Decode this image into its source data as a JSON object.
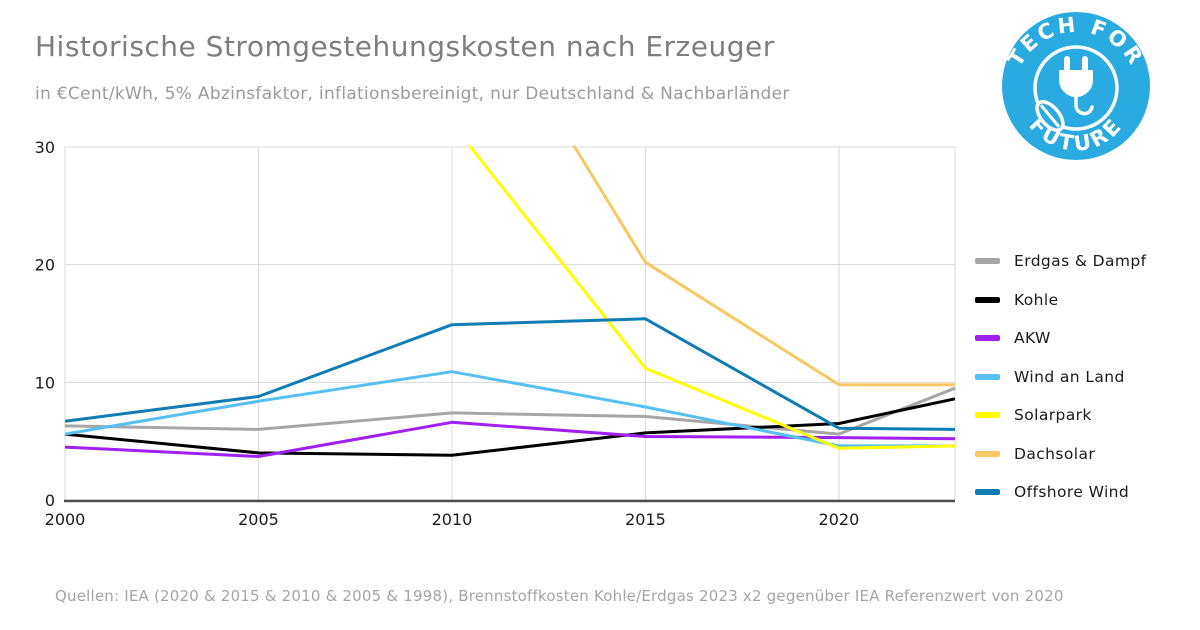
{
  "header": {
    "title": "Historische Stromgestehungskosten nach Erzeuger",
    "subtitle": "in €Cent/kWh, 5% Abzinsfaktor, inflationsbereinigt, nur Deutschland & Nachbarländer"
  },
  "logo": {
    "text_top": "TECH FOR",
    "text_bottom": "FUTURE",
    "color": "#29abe2",
    "icon": "plug-leaf-icon"
  },
  "footer": {
    "source": "Quellen: IEA (2020 & 2015 & 2010 & 2005 & 1998), Brennstoffkosten Kohle/Erdgas 2023 x2 gegenüber IEA Referenzwert von 2020"
  },
  "chart_data": {
    "type": "line",
    "x": [
      2000,
      2005,
      2010,
      2015,
      2020,
      2023
    ],
    "x_tick_labels": [
      "2000",
      "2005",
      "2010",
      "2015",
      "2020"
    ],
    "y_ticks": [
      0,
      10,
      20,
      30
    ],
    "xlim": [
      2000,
      2023
    ],
    "ylim": [
      0,
      30
    ],
    "grid": true,
    "legend_position": "right",
    "series": [
      {
        "name": "Erdgas & Dampf",
        "color": "#a6a6a6",
        "values": [
          6.3,
          6.0,
          7.4,
          7.1,
          5.6,
          9.5
        ]
      },
      {
        "name": "Kohle",
        "color": "#000000",
        "values": [
          5.6,
          4.0,
          3.8,
          5.7,
          6.5,
          8.6
        ]
      },
      {
        "name": "AKW",
        "color": "#a020f0",
        "values": [
          4.5,
          3.7,
          6.6,
          5.4,
          5.3,
          5.2
        ]
      },
      {
        "name": "Wind an Land",
        "color": "#56c1f0",
        "values": [
          5.6,
          8.4,
          10.9,
          7.9,
          4.6,
          4.6
        ]
      },
      {
        "name": "Solarpark",
        "color": "#ffff00",
        "values": [
          null,
          null,
          32,
          11.2,
          4.4,
          4.6
        ]
      },
      {
        "name": "Dachsolar",
        "color": "#f7c964",
        "values": [
          null,
          null,
          47,
          20.2,
          9.8,
          9.8
        ]
      },
      {
        "name": "Offshore Wind",
        "color": "#0f7cb4",
        "values": [
          6.7,
          8.8,
          14.9,
          15.4,
          6.1,
          6.0
        ]
      }
    ]
  }
}
